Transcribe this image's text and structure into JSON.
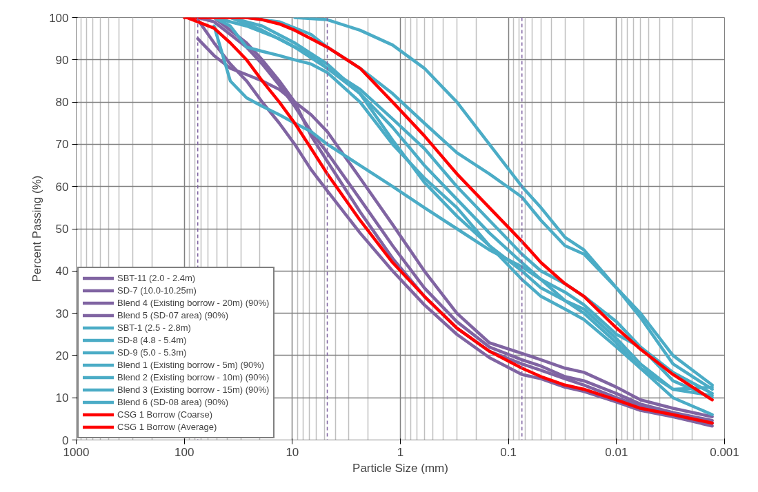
{
  "chart_data": {
    "type": "line",
    "xlabel": "Particle Size (mm)",
    "ylabel": "Percent Passing (%)",
    "log": "x",
    "xlim": [
      1000,
      0.001
    ],
    "xticks": [
      1000,
      100,
      10,
      1,
      0.1,
      0.01,
      0.001
    ],
    "ylim": [
      0,
      100
    ],
    "yticks": [
      0,
      10,
      20,
      30,
      40,
      50,
      60,
      70,
      80,
      90,
      100
    ],
    "grid": true,
    "legend": "bottom left",
    "line_style": "solid",
    "ref_lines": [
      {
        "axis": "x",
        "value": 75,
        "color": "#8064a2",
        "line_style": "dashed"
      },
      {
        "axis": "x",
        "value": 4.75,
        "color": "#8064a2",
        "line_style": "dashed"
      },
      {
        "axis": "x",
        "value": 0.075,
        "color": "#8064a2",
        "line_style": "dashed"
      }
    ],
    "series": [
      {
        "name": "SBT-11 (2.0 - 2.4m)",
        "color": "#8064a2",
        "x": [
          75,
          53,
          37.5,
          26.5,
          19,
          13.2,
          9.5,
          6.7,
          4.75,
          2.36,
          1.18,
          0.6,
          0.3,
          0.15,
          0.075,
          0.05,
          0.03,
          0.02,
          0.01,
          0.006,
          0.003,
          0.0013
        ],
        "values": [
          95,
          91,
          88,
          86.5,
          85,
          83,
          80,
          77,
          73,
          62,
          51,
          40,
          30,
          23,
          20.5,
          19,
          17,
          16,
          12.5,
          9.5,
          7.5,
          5.5
        ]
      },
      {
        "name": "SD-7 (10.0-10.25m)",
        "color": "#8064a2",
        "x": [
          75,
          53,
          37.5,
          26.5,
          19,
          13.2,
          9.5,
          6.7,
          4.75,
          2.36,
          1.18,
          0.6,
          0.3,
          0.15,
          0.075,
          0.05,
          0.03,
          0.02,
          0.01,
          0.006,
          0.003,
          0.0013
        ],
        "values": [
          99.5,
          94,
          89,
          85,
          80,
          75,
          70,
          64,
          59,
          49,
          40,
          32,
          25,
          19.5,
          15.5,
          14.5,
          12.5,
          11.5,
          9,
          7,
          5.5,
          3.3
        ]
      },
      {
        "name": "Blend 4 (Existing borrow - 20m) (90%)",
        "color": "#8064a2",
        "x": [
          75,
          53,
          37.5,
          26.5,
          19,
          13.2,
          9.5,
          6.7,
          4.75,
          2.36,
          1.18,
          0.6,
          0.3,
          0.15,
          0.075,
          0.05,
          0.03,
          0.02,
          0.01,
          0.006,
          0.003,
          0.0013
        ],
        "values": [
          100,
          99,
          96,
          93,
          89,
          84,
          79,
          73,
          68,
          57,
          46,
          36,
          28,
          22,
          19,
          17.5,
          15,
          14,
          11,
          8.5,
          6.5,
          4.6
        ]
      },
      {
        "name": "Blend 5 (SD-07 area) (90%)",
        "color": "#8064a2",
        "x": [
          53,
          37.5,
          26.5,
          19,
          13.2,
          9.5,
          6.7,
          4.75,
          2.36,
          1.18,
          0.6,
          0.3,
          0.15,
          0.075,
          0.05,
          0.03,
          0.02,
          0.01,
          0.006,
          0.003,
          0.0013
        ],
        "values": [
          100,
          97,
          94,
          90,
          85,
          80,
          72,
          66,
          54,
          43,
          34,
          26.5,
          21,
          18,
          16.5,
          14.5,
          13,
          10,
          8,
          6,
          4
        ]
      },
      {
        "name": "SBT-1 (2.5 - 2.8m)",
        "color": "#4bacc6",
        "x": [
          9.5,
          4.75,
          2.36,
          1.18,
          0.6,
          0.3,
          0.15,
          0.075,
          0.05,
          0.03,
          0.02,
          0.01,
          0.006,
          0.003,
          0.0013
        ],
        "values": [
          100,
          99.5,
          97,
          93.5,
          88,
          80,
          70,
          60,
          55,
          48,
          45,
          36,
          30,
          20,
          13
        ]
      },
      {
        "name": "SD-8 (4.8 - 5.4m)",
        "color": "#4bacc6",
        "x": [
          26.5,
          13.2,
          6.7,
          4.75,
          2.36,
          1.18,
          0.6,
          0.3,
          0.15,
          0.075,
          0.05,
          0.03,
          0.02,
          0.01,
          0.006,
          0.003,
          0.0013
        ],
        "values": [
          100,
          99,
          96,
          93,
          88,
          82,
          75,
          68,
          63,
          57.5,
          52,
          46,
          44,
          36,
          29,
          18,
          12
        ]
      },
      {
        "name": "SD-9 (5.0 - 5.3m)",
        "color": "#4bacc6",
        "x": [
          37.5,
          19,
          9.5,
          4.75,
          2.36,
          1.18,
          0.6,
          0.3,
          0.15,
          0.075,
          0.05,
          0.03,
          0.02,
          0.01,
          0.006,
          0.003,
          0.0013
        ],
        "values": [
          100,
          97,
          93,
          88,
          83,
          76,
          69,
          60,
          52,
          44,
          40,
          37,
          34,
          28,
          22,
          16,
          11
        ]
      },
      {
        "name": "Blend 1 (Existing borrow - 5m) (90%)",
        "color": "#4bacc6",
        "x": [
          53,
          26.5,
          13.2,
          6.7,
          4.75,
          2.36,
          1.18,
          0.6,
          0.3,
          0.15,
          0.075,
          0.05,
          0.03,
          0.02,
          0.01,
          0.006,
          0.003,
          0.0013
        ],
        "values": [
          100,
          98,
          95,
          91,
          88,
          82,
          74,
          65,
          57,
          49,
          42,
          38,
          35,
          32,
          25,
          22,
          14,
          10
        ]
      },
      {
        "name": "Blend 2 (Existing borrow - 10m) (90%)",
        "color": "#4bacc6",
        "x": [
          37.5,
          19,
          9.5,
          4.75,
          2.36,
          1.18,
          0.6,
          0.3,
          0.15,
          0.075,
          0.05,
          0.03,
          0.02,
          0.01,
          0.006,
          0.003,
          0.0013
        ],
        "values": [
          100,
          98,
          94,
          89,
          82,
          71,
          61,
          53,
          46,
          40,
          36,
          33,
          31,
          24,
          18,
          12,
          12.5
        ]
      },
      {
        "name": "Blend 3 (Existing borrow - 15m) (90%)",
        "color": "#4bacc6",
        "x": [
          53,
          37.5,
          26.5,
          19,
          13.2,
          9.5,
          6.7,
          4.75,
          2.36,
          1.18,
          0.6,
          0.3,
          0.15,
          0.075,
          0.05,
          0.03,
          0.02,
          0.01,
          0.006,
          0.003,
          0.0013
        ],
        "values": [
          98,
          85,
          81,
          79,
          77,
          75,
          73,
          70,
          65,
          60,
          55,
          50,
          45,
          41,
          38,
          33,
          30,
          23,
          17,
          10,
          6
        ]
      },
      {
        "name": "Blend 6 (SD-08 area) (90%)",
        "color": "#4bacc6",
        "x": [
          53,
          37.5,
          26.5,
          19,
          13.2,
          9.5,
          6.7,
          4.75,
          2.36,
          1.18,
          0.6,
          0.3,
          0.15,
          0.075,
          0.05,
          0.03,
          0.02,
          0.01,
          0.006,
          0.003,
          0.0013
        ],
        "values": [
          100,
          98,
          93,
          92,
          91,
          90,
          89,
          87,
          80,
          70,
          62,
          55,
          46,
          38,
          34,
          31,
          28.5,
          22,
          17,
          12,
          10.5
        ]
      },
      {
        "name": "CSG 1 Borrow (Coarse)",
        "color": "#ff0000",
        "x": [
          100,
          26.5,
          19,
          13.2,
          9.5,
          6.7,
          4.75,
          2.36,
          1.18,
          0.6,
          0.3,
          0.15,
          0.075,
          0.05,
          0.03,
          0.02,
          0.01,
          0.006,
          0.003,
          0.0013
        ],
        "values": [
          100,
          100,
          99.5,
          98.5,
          97,
          95,
          93,
          88,
          80,
          72,
          63,
          55,
          47,
          42,
          37,
          34,
          26.5,
          21.5,
          15.5,
          9.5
        ]
      },
      {
        "name": "CSG 1 Borrow (Average)",
        "color": "#ff0000",
        "x": [
          95,
          75,
          53,
          37.5,
          26.5,
          19,
          13.2,
          9.5,
          6.7,
          4.75,
          2.36,
          1.18,
          0.6,
          0.3,
          0.15,
          0.075,
          0.05,
          0.03,
          0.02,
          0.01,
          0.006,
          0.003,
          0.0013
        ],
        "values": [
          100,
          99,
          97.5,
          94,
          90,
          85,
          80,
          75,
          69,
          63,
          52,
          42,
          34,
          26.5,
          21,
          17,
          15,
          13,
          12,
          9.5,
          7.5,
          6,
          4
        ]
      }
    ]
  }
}
